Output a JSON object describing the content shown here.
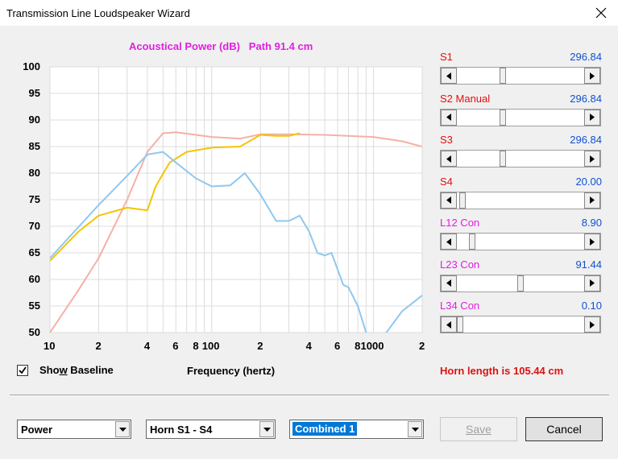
{
  "window": {
    "title": "Transmission Line Loudspeaker Wizard"
  },
  "chart": {
    "title": "Acoustical Power (dB)   Path 91.4 cm",
    "y_ticks": [
      "100",
      "95",
      "90",
      "85",
      "80",
      "75",
      "70",
      "65",
      "60",
      "55",
      "50"
    ],
    "x_ticks": [
      "10",
      "2",
      "4",
      "6",
      "8",
      "100",
      "2",
      "4",
      "6",
      "8",
      "1000",
      "2"
    ],
    "xlabel": "Frequency (hertz)"
  },
  "chart_data": {
    "type": "line",
    "xscale": "log",
    "xlim": [
      10,
      2000
    ],
    "ylim": [
      50,
      100
    ],
    "grid": true,
    "series": [
      {
        "color": "#f5b0a8",
        "x": [
          10,
          15,
          20,
          30,
          40,
          50,
          60,
          80,
          100,
          150,
          200,
          300,
          500,
          1000,
          1500,
          2000
        ],
        "y": [
          50,
          58,
          64,
          75,
          84,
          87.5,
          87.7,
          87.2,
          86.8,
          86.5,
          87.3,
          87.3,
          87.2,
          86.8,
          86,
          85
        ]
      },
      {
        "color": "#f5c400",
        "x": [
          10,
          15,
          20,
          30,
          40,
          45,
          55,
          70,
          100,
          150,
          200,
          250,
          300,
          350
        ],
        "y": [
          63.5,
          69,
          72,
          73.5,
          73,
          77.5,
          82,
          84,
          84.8,
          85,
          87.2,
          87,
          87,
          87.5
        ]
      },
      {
        "color": "#90c8f0",
        "x": [
          10,
          20,
          30,
          40,
          50,
          60,
          80,
          100,
          130,
          160,
          200,
          250,
          300,
          350,
          400,
          450,
          500,
          550,
          650,
          700,
          800,
          900,
          1000,
          1200,
          1500,
          2000
        ],
        "y": [
          64,
          74,
          79.5,
          83.5,
          84,
          82,
          79,
          77.5,
          77.7,
          80,
          76,
          71,
          71,
          72,
          69,
          65,
          64.5,
          65,
          59,
          58.5,
          55,
          50,
          47,
          50,
          54,
          57
        ]
      }
    ]
  },
  "show_baseline": {
    "label": "Show Baseline",
    "checked": true
  },
  "horn_length": "Horn length is 105.44 cm",
  "sliders": [
    {
      "label": "S1",
      "value": "296.84",
      "color": "#e01010",
      "position": 0.35
    },
    {
      "label": "S2 Manual",
      "value": "296.84",
      "color": "#e01010",
      "position": 0.35
    },
    {
      "label": "S3",
      "value": "296.84",
      "color": "#e01010",
      "position": 0.35
    },
    {
      "label": "S4",
      "value": "20.00",
      "color": "#e01010",
      "position": 0.02
    },
    {
      "label": "L12 Con",
      "value": "8.90",
      "color": "#e020e0",
      "position": 0.1
    },
    {
      "label": "L23 Con",
      "value": "91.44",
      "color": "#e020e0",
      "position": 0.5
    },
    {
      "label": "L34 Con",
      "value": "0.10",
      "color": "#e020e0",
      "position": 0.0
    }
  ],
  "combos": [
    {
      "value": "Power"
    },
    {
      "value": "Horn S1 - S4"
    },
    {
      "value": "Combined 1"
    }
  ],
  "buttons": {
    "save": "Save",
    "cancel": "Cancel"
  }
}
